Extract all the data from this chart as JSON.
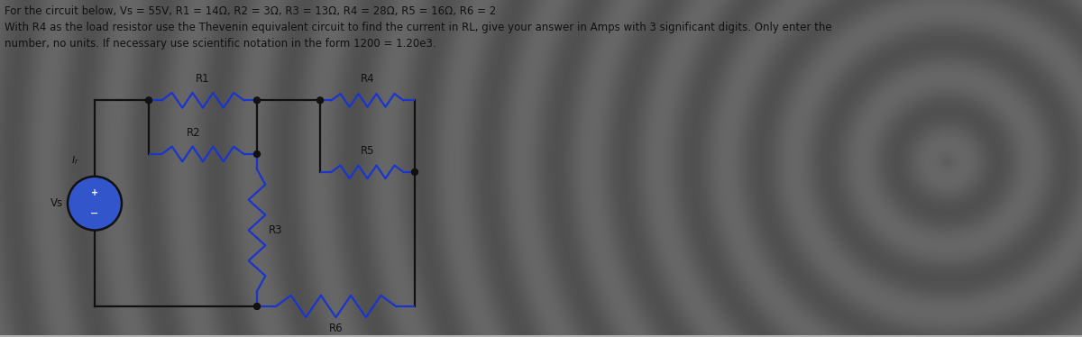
{
  "line1": "For the circuit below, Vs = 55V, R1 = 14Ω, R2 = 3Ω, R3 = 13Ω, R4 = 28Ω, R5 = 16Ω, R6 = 2",
  "line2": "With R4 as the load resistor use the Thevenin equivalent circuit to find the current in RL, give your answer in Amps with 3 significant digits. Only enter the",
  "line3": "number, no units. If necessary use scientific notation in the form 1200 = 1.20e3.",
  "bg_color": "#b0b0b0",
  "wire_color": "#111111",
  "blue_color": "#1a35cc",
  "source_fill": "#3355cc",
  "text_color": "#111111",
  "label_color": "#111111",
  "font_size_title": 8.5,
  "font_size_label": 8.5,
  "lw_wire": 1.6,
  "lw_res": 1.6
}
